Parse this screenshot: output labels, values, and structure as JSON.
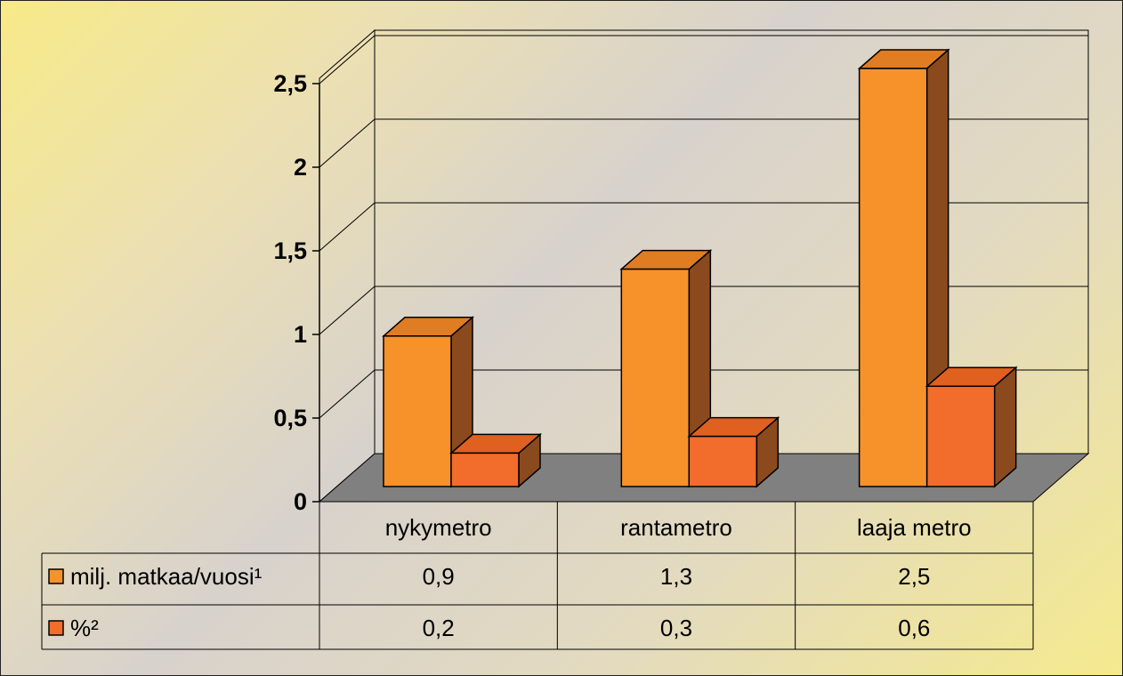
{
  "chart_data": {
    "type": "bar",
    "categories": [
      "nykymetro",
      "rantametro",
      "laaja metro"
    ],
    "series": [
      {
        "name": "milj. matkaa/vuosi¹",
        "values": [
          0.9,
          1.3,
          2.5
        ],
        "color": "#f7922a"
      },
      {
        "name": "%²",
        "values": [
          0.2,
          0.3,
          0.6
        ],
        "color": "#f26c2b"
      }
    ],
    "y_ticks": [
      "0",
      "0,5",
      "1",
      "1,5",
      "2",
      "2,5"
    ],
    "ylim": [
      0,
      2.5
    ],
    "data_table": {
      "rows": [
        {
          "label": "milj. matkaa/vuosi¹",
          "cells": [
            "0,9",
            "1,3",
            "2,5"
          ]
        },
        {
          "label": "%²",
          "cells": [
            "0,2",
            "0,3",
            "0,6"
          ]
        }
      ]
    },
    "grid": true,
    "style": "3d-clustered-bar",
    "floor_color": "#808080",
    "side_color": "#8b4a1e",
    "background": "yellow-gray gradient"
  }
}
